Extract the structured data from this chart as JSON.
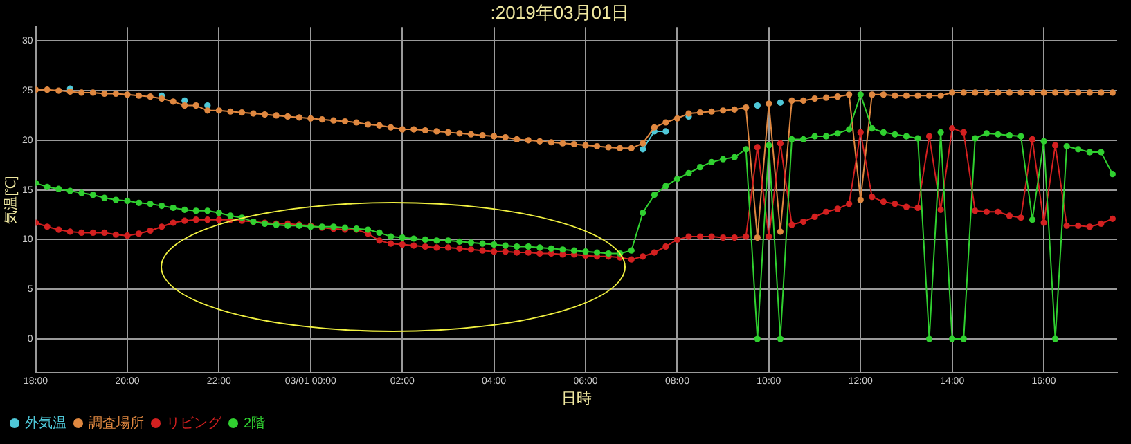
{
  "chart_data": {
    "type": "line",
    "title": ":2019年03月01日",
    "xlabel": "日時",
    "ylabel": "気温[℃]",
    "x": [
      "2019-02-28T18:00",
      "2019-02-28T18:15",
      "2019-02-28T18:30",
      "2019-02-28T18:45",
      "2019-02-28T19:00",
      "2019-02-28T19:15",
      "2019-02-28T19:30",
      "2019-02-28T19:45",
      "2019-02-28T20:00",
      "2019-02-28T20:15",
      "2019-02-28T20:30",
      "2019-02-28T20:45",
      "2019-02-28T21:00",
      "2019-02-28T21:15",
      "2019-02-28T21:30",
      "2019-02-28T21:45",
      "2019-02-28T22:00",
      "2019-02-28T22:15",
      "2019-02-28T22:30",
      "2019-02-28T22:45",
      "2019-02-28T23:00",
      "2019-02-28T23:15",
      "2019-02-28T23:30",
      "2019-02-28T23:45",
      "2019-03-01T00:00",
      "2019-03-01T00:15",
      "2019-03-01T00:30",
      "2019-03-01T00:45",
      "2019-03-01T01:00",
      "2019-03-01T01:15",
      "2019-03-01T01:30",
      "2019-03-01T01:45",
      "2019-03-01T02:00",
      "2019-03-01T02:15",
      "2019-03-01T02:30",
      "2019-03-01T02:45",
      "2019-03-01T03:00",
      "2019-03-01T03:15",
      "2019-03-01T03:30",
      "2019-03-01T03:45",
      "2019-03-01T04:00",
      "2019-03-01T04:15",
      "2019-03-01T04:30",
      "2019-03-01T04:45",
      "2019-03-01T05:00",
      "2019-03-01T05:15",
      "2019-03-01T05:30",
      "2019-03-01T05:45",
      "2019-03-01T06:00",
      "2019-03-01T06:15",
      "2019-03-01T06:30",
      "2019-03-01T06:45",
      "2019-03-01T07:00",
      "2019-03-01T07:15",
      "2019-03-01T07:30",
      "2019-03-01T07:45",
      "2019-03-01T08:00",
      "2019-03-01T08:15",
      "2019-03-01T08:30",
      "2019-03-01T08:45",
      "2019-03-01T09:00",
      "2019-03-01T09:15",
      "2019-03-01T09:30",
      "2019-03-01T09:45",
      "2019-03-01T10:00",
      "2019-03-01T10:15",
      "2019-03-01T10:30",
      "2019-03-01T10:45",
      "2019-03-01T11:00",
      "2019-03-01T11:15",
      "2019-03-01T11:30",
      "2019-03-01T11:45",
      "2019-03-01T12:00",
      "2019-03-01T12:15",
      "2019-03-01T12:30",
      "2019-03-01T12:45",
      "2019-03-01T13:00",
      "2019-03-01T13:15",
      "2019-03-01T13:30",
      "2019-03-01T13:45",
      "2019-03-01T14:00",
      "2019-03-01T14:15",
      "2019-03-01T14:30",
      "2019-03-01T14:45",
      "2019-03-01T15:00",
      "2019-03-01T15:15",
      "2019-03-01T15:30",
      "2019-03-01T15:45",
      "2019-03-01T16:00",
      "2019-03-01T16:15",
      "2019-03-01T16:30",
      "2019-03-01T16:45",
      "2019-03-01T17:00",
      "2019-03-01T17:15",
      "2019-03-01T17:30"
    ],
    "series": [
      {
        "name": "外気温",
        "color": "#4fc8d8",
        "values": [
          null,
          null,
          null,
          25.2,
          null,
          null,
          null,
          null,
          null,
          null,
          null,
          24.5,
          null,
          24.0,
          null,
          23.5,
          null,
          null,
          null,
          null,
          null,
          null,
          null,
          null,
          null,
          null,
          null,
          null,
          null,
          null,
          null,
          null,
          null,
          null,
          null,
          null,
          null,
          null,
          null,
          null,
          null,
          null,
          null,
          null,
          null,
          null,
          null,
          null,
          null,
          null,
          null,
          null,
          null,
          19.1,
          20.9,
          20.9,
          null,
          22.4,
          null,
          null,
          null,
          null,
          null,
          23.5,
          null,
          23.8,
          null,
          null,
          null,
          null,
          null,
          null,
          null,
          null,
          null,
          null,
          null,
          null,
          null,
          null,
          null,
          null,
          null,
          null,
          null,
          null,
          null,
          null,
          null,
          null,
          null,
          null,
          null,
          null,
          null
        ]
      },
      {
        "name": "調査場所",
        "color": "#e08840",
        "values": [
          25.1,
          25.1,
          25.0,
          24.9,
          24.8,
          24.8,
          24.7,
          24.7,
          24.6,
          24.5,
          24.4,
          24.2,
          23.9,
          23.5,
          23.5,
          23.0,
          23.0,
          22.9,
          22.8,
          22.7,
          22.6,
          22.5,
          22.4,
          22.3,
          22.2,
          22.1,
          22.0,
          21.9,
          21.8,
          21.6,
          21.5,
          21.3,
          21.1,
          21.1,
          21.0,
          20.9,
          20.8,
          20.7,
          20.6,
          20.5,
          20.4,
          20.3,
          20.1,
          20.0,
          19.9,
          19.8,
          19.7,
          19.6,
          19.5,
          19.4,
          19.3,
          19.2,
          19.2,
          19.7,
          21.3,
          21.8,
          22.2,
          22.7,
          22.8,
          22.9,
          23.0,
          23.1,
          23.3,
          10.2,
          23.7,
          10.8,
          24.0,
          24.0,
          24.2,
          24.3,
          24.4,
          24.6,
          14.0,
          24.6,
          24.6,
          24.5,
          24.5,
          24.5,
          24.5,
          24.5,
          24.8,
          24.8,
          24.8,
          24.8,
          24.8,
          24.8,
          24.8,
          24.8,
          24.8,
          24.8,
          24.8,
          24.8,
          24.8,
          24.8,
          24.8
        ]
      },
      {
        "name": "リビング",
        "color": "#d42020",
        "values": [
          11.7,
          11.3,
          11.0,
          10.8,
          10.7,
          10.7,
          10.7,
          10.5,
          10.4,
          10.6,
          10.9,
          11.3,
          11.7,
          11.9,
          12.0,
          12.0,
          12.0,
          12.0,
          11.9,
          11.8,
          11.7,
          11.6,
          11.6,
          11.5,
          11.4,
          11.2,
          11.1,
          11.0,
          11.0,
          10.6,
          9.9,
          9.6,
          9.5,
          9.4,
          9.3,
          9.2,
          9.2,
          9.1,
          9.0,
          8.9,
          8.8,
          8.8,
          8.7,
          8.7,
          8.6,
          8.6,
          8.5,
          8.5,
          8.4,
          8.3,
          8.3,
          8.2,
          8.0,
          8.3,
          8.7,
          9.3,
          10.0,
          10.3,
          10.3,
          10.3,
          10.2,
          10.2,
          10.3,
          19.3,
          10.3,
          19.7,
          11.5,
          11.8,
          12.3,
          12.8,
          13.1,
          13.6,
          20.8,
          14.3,
          13.8,
          13.6,
          13.3,
          13.2,
          20.4,
          13.0,
          21.2,
          20.8,
          12.9,
          12.8,
          12.8,
          12.4,
          12.2,
          20.1,
          11.7,
          19.5,
          11.4,
          11.4,
          11.3,
          11.6,
          12.1
        ]
      },
      {
        "name": "2階",
        "color": "#30d030",
        "values": [
          15.7,
          15.3,
          15.1,
          14.9,
          14.7,
          14.5,
          14.2,
          14.0,
          13.9,
          13.7,
          13.6,
          13.4,
          13.2,
          13.0,
          12.9,
          12.9,
          12.7,
          12.4,
          12.2,
          11.8,
          11.6,
          11.5,
          11.4,
          11.4,
          11.3,
          11.3,
          11.3,
          11.2,
          11.1,
          11.0,
          10.7,
          10.3,
          10.2,
          10.1,
          10.0,
          9.9,
          9.9,
          9.8,
          9.7,
          9.6,
          9.5,
          9.4,
          9.3,
          9.3,
          9.2,
          9.1,
          9.0,
          8.9,
          8.8,
          8.7,
          8.6,
          8.6,
          8.9,
          12.7,
          14.5,
          15.4,
          16.1,
          16.7,
          17.3,
          17.8,
          18.1,
          18.3,
          19.1,
          0,
          19.5,
          0,
          20.1,
          20.1,
          20.4,
          20.4,
          20.7,
          21.1,
          24.6,
          21.2,
          20.8,
          20.6,
          20.4,
          20.2,
          0,
          20.8,
          0,
          0,
          20.2,
          20.7,
          20.6,
          20.5,
          20.4,
          12.0,
          19.9,
          0,
          19.4,
          19.1,
          18.8,
          18.8,
          16.6
        ]
      }
    ],
    "xlim": [
      "2019-02-28T18:00",
      "2019-03-01T17:36"
    ],
    "xticks": [
      {
        "value": "2019-02-28T18:00",
        "label": "18:00"
      },
      {
        "value": "2019-02-28T20:00",
        "label": "20:00"
      },
      {
        "value": "2019-02-28T22:00",
        "label": "22:00"
      },
      {
        "value": "2019-03-01T00:00",
        "label": "03/01 00:00"
      },
      {
        "value": "2019-03-01T02:00",
        "label": "02:00"
      },
      {
        "value": "2019-03-01T04:00",
        "label": "04:00"
      },
      {
        "value": "2019-03-01T06:00",
        "label": "06:00"
      },
      {
        "value": "2019-03-01T08:00",
        "label": "08:00"
      },
      {
        "value": "2019-03-01T10:00",
        "label": "10:00"
      },
      {
        "value": "2019-03-01T12:00",
        "label": "12:00"
      },
      {
        "value": "2019-03-01T14:00",
        "label": "14:00"
      },
      {
        "value": "2019-03-01T16:00",
        "label": "16:00"
      }
    ],
    "ylim": [
      -3.4,
      31.4
    ],
    "yticks": [
      0,
      5,
      10,
      15,
      20,
      25,
      30
    ],
    "grid": true,
    "legend": "bottom left",
    "marker": "circle",
    "line_style": "solid"
  }
}
